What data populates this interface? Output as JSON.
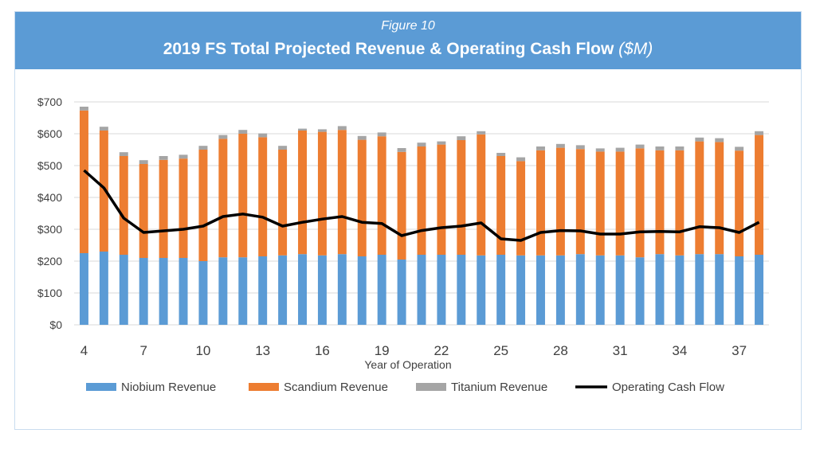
{
  "header": {
    "figure_label": "Figure 10",
    "title": "2019 FS Total Projected Revenue & Operating Cash Flow",
    "title_unit": "($M)"
  },
  "colors": {
    "header_bg": "#5b9bd5",
    "niobium": "#5b9bd5",
    "scandium": "#ed7d31",
    "titanium": "#a5a5a5",
    "cash_flow": "#000000",
    "grid": "#d9d9d9"
  },
  "chart_data": {
    "type": "bar",
    "stacked": true,
    "x": [
      4,
      5,
      6,
      7,
      8,
      9,
      10,
      11,
      12,
      13,
      14,
      15,
      16,
      17,
      18,
      19,
      20,
      21,
      22,
      23,
      24,
      25,
      26,
      27,
      28,
      29,
      30,
      31,
      32,
      33,
      34,
      35,
      36,
      37,
      38
    ],
    "x_tick_labels": [
      "4",
      "7",
      "10",
      "13",
      "16",
      "19",
      "22",
      "25",
      "28",
      "31",
      "34",
      "37"
    ],
    "xlabel": "Year of Operation",
    "ylabel": "",
    "ylim": [
      0,
      700
    ],
    "y_tick_labels": [
      "$0",
      "$100",
      "$200",
      "$300",
      "$400",
      "$500",
      "$600",
      "$700"
    ],
    "grid": true,
    "legend_position": "bottom",
    "series": [
      {
        "name": "Niobium Revenue",
        "type": "bar",
        "values": [
          225,
          230,
          220,
          210,
          210,
          210,
          200,
          212,
          212,
          215,
          218,
          222,
          218,
          222,
          215,
          220,
          205,
          220,
          220,
          220,
          218,
          220,
          218,
          218,
          218,
          222,
          218,
          218,
          212,
          222,
          218,
          222,
          222,
          215,
          220
        ]
      },
      {
        "name": "Scandium Revenue",
        "type": "bar",
        "values": [
          448,
          380,
          310,
          295,
          308,
          312,
          350,
          372,
          388,
          374,
          332,
          388,
          388,
          390,
          366,
          372,
          338,
          340,
          346,
          360,
          380,
          310,
          296,
          330,
          338,
          330,
          326,
          326,
          342,
          326,
          330,
          354,
          352,
          332,
          376
        ]
      },
      {
        "name": "Titanium Revenue",
        "type": "bar",
        "values": [
          12,
          12,
          12,
          12,
          12,
          12,
          12,
          12,
          12,
          12,
          12,
          6,
          8,
          12,
          12,
          12,
          12,
          12,
          10,
          12,
          10,
          10,
          12,
          12,
          12,
          12,
          10,
          12,
          12,
          12,
          12,
          12,
          12,
          12,
          12
        ]
      },
      {
        "name": "Operating Cash Flow",
        "type": "line",
        "values": [
          485,
          430,
          335,
          290,
          295,
          300,
          310,
          340,
          348,
          338,
          310,
          322,
          332,
          340,
          322,
          318,
          280,
          296,
          305,
          310,
          320,
          270,
          265,
          290,
          296,
          295,
          285,
          285,
          292,
          293,
          292,
          308,
          305,
          290,
          322
        ]
      }
    ]
  }
}
